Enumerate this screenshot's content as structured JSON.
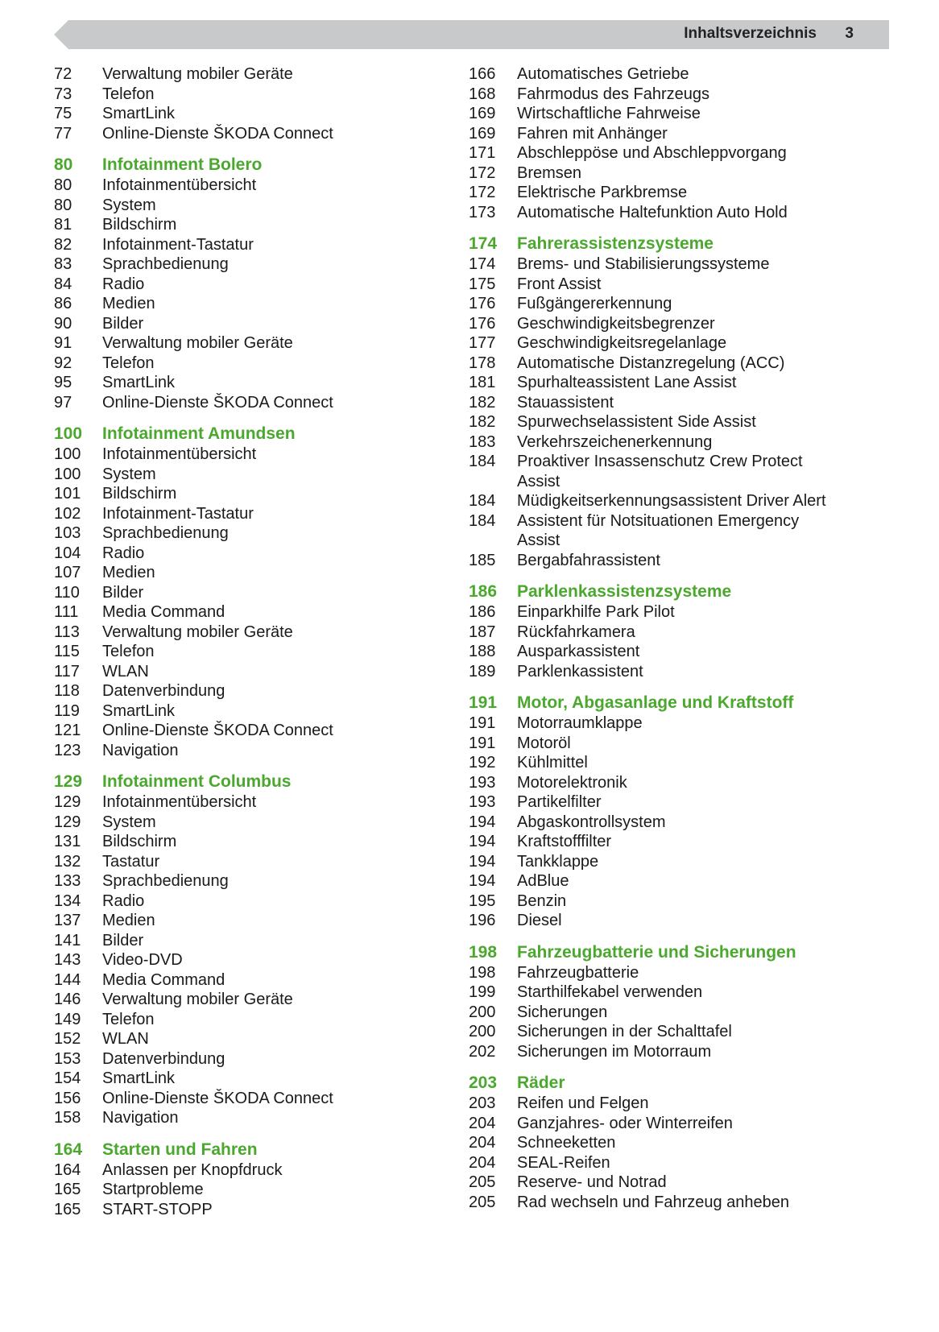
{
  "header": {
    "title": "Inhaltsverzeichnis",
    "page": "3",
    "bar_color": "#c8c9ca"
  },
  "accent_color": "#4ba82e",
  "columns": [
    [
      {
        "heading": null,
        "items": [
          [
            "72",
            "Verwaltung mobiler Geräte"
          ],
          [
            "73",
            "Telefon"
          ],
          [
            "75",
            "SmartLink"
          ],
          [
            "77",
            "Online-Dienste ŠKODA Connect"
          ]
        ]
      },
      {
        "heading": [
          "80",
          "Infotainment Bolero"
        ],
        "items": [
          [
            "80",
            "Infotainmentübersicht"
          ],
          [
            "80",
            "System"
          ],
          [
            "81",
            "Bildschirm"
          ],
          [
            "82",
            "Infotainment-Tastatur"
          ],
          [
            "83",
            "Sprachbedienung"
          ],
          [
            "84",
            "Radio"
          ],
          [
            "86",
            "Medien"
          ],
          [
            "90",
            "Bilder"
          ],
          [
            "91",
            "Verwaltung mobiler Geräte"
          ],
          [
            "92",
            "Telefon"
          ],
          [
            "95",
            "SmartLink"
          ],
          [
            "97",
            "Online-Dienste ŠKODA Connect"
          ]
        ]
      },
      {
        "heading": [
          "100",
          "Infotainment Amundsen"
        ],
        "items": [
          [
            "100",
            "Infotainmentübersicht"
          ],
          [
            "100",
            "System"
          ],
          [
            "101",
            "Bildschirm"
          ],
          [
            "102",
            "Infotainment-Tastatur"
          ],
          [
            "103",
            "Sprachbedienung"
          ],
          [
            "104",
            "Radio"
          ],
          [
            "107",
            "Medien"
          ],
          [
            "110",
            "Bilder"
          ],
          [
            "111",
            "Media Command"
          ],
          [
            "113",
            "Verwaltung mobiler Geräte"
          ],
          [
            "115",
            "Telefon"
          ],
          [
            "117",
            "WLAN"
          ],
          [
            "118",
            "Datenverbindung"
          ],
          [
            "119",
            "SmartLink"
          ],
          [
            "121",
            "Online-Dienste ŠKODA Connect"
          ],
          [
            "123",
            "Navigation"
          ]
        ]
      },
      {
        "heading": [
          "129",
          "Infotainment Columbus"
        ],
        "items": [
          [
            "129",
            "Infotainmentübersicht"
          ],
          [
            "129",
            "System"
          ],
          [
            "131",
            "Bildschirm"
          ],
          [
            "132",
            "Tastatur"
          ],
          [
            "133",
            "Sprachbedienung"
          ],
          [
            "134",
            "Radio"
          ],
          [
            "137",
            "Medien"
          ],
          [
            "141",
            "Bilder"
          ],
          [
            "143",
            "Video-DVD"
          ],
          [
            "144",
            "Media Command"
          ],
          [
            "146",
            "Verwaltung mobiler Geräte"
          ],
          [
            "149",
            "Telefon"
          ],
          [
            "152",
            "WLAN"
          ],
          [
            "153",
            "Datenverbindung"
          ],
          [
            "154",
            "SmartLink"
          ],
          [
            "156",
            "Online-Dienste ŠKODA Connect"
          ],
          [
            "158",
            "Navigation"
          ]
        ]
      },
      {
        "heading": [
          "164",
          "Starten und Fahren"
        ],
        "items": [
          [
            "164",
            "Anlassen per Knopfdruck"
          ],
          [
            "165",
            "Startprobleme"
          ],
          [
            "165",
            "START-STOPP"
          ]
        ]
      }
    ],
    [
      {
        "heading": null,
        "items": [
          [
            "166",
            "Automatisches Getriebe"
          ],
          [
            "168",
            "Fahrmodus des Fahrzeugs"
          ],
          [
            "169",
            "Wirtschaftliche Fahrweise"
          ],
          [
            "169",
            "Fahren mit Anhänger"
          ],
          [
            "171",
            "Abschleppöse und Abschleppvorgang"
          ],
          [
            "172",
            "Bremsen"
          ],
          [
            "172",
            "Elektrische Parkbremse"
          ],
          [
            "173",
            "Automatische Haltefunktion Auto Hold"
          ]
        ]
      },
      {
        "heading": [
          "174",
          "Fahrerassistenzsysteme"
        ],
        "items": [
          [
            "174",
            "Brems- und Stabilisierungssysteme"
          ],
          [
            "175",
            "Front Assist"
          ],
          [
            "176",
            "Fußgängererkennung"
          ],
          [
            "176",
            "Geschwindigkeitsbegrenzer"
          ],
          [
            "177",
            "Geschwindigkeitsregelanlage"
          ],
          [
            "178",
            "Automatische Distanzregelung (ACC)"
          ],
          [
            "181",
            "Spurhalteassistent Lane Assist"
          ],
          [
            "182",
            "Stauassistent"
          ],
          [
            "182",
            "Spurwechselassistent Side Assist"
          ],
          [
            "183",
            "Verkehrszeichenerkennung"
          ],
          [
            "184",
            "Proaktiver Insassenschutz Crew Protect Assist"
          ],
          [
            "184",
            "Müdigkeitserkennungsassistent Driver Alert"
          ],
          [
            "184",
            "Assistent für Notsituationen Emergency Assist"
          ],
          [
            "185",
            "Bergabfahrassistent"
          ]
        ]
      },
      {
        "heading": [
          "186",
          "Parklenkassistenzsysteme"
        ],
        "items": [
          [
            "186",
            "Einparkhilfe Park Pilot"
          ],
          [
            "187",
            "Rückfahrkamera"
          ],
          [
            "188",
            "Ausparkassistent"
          ],
          [
            "189",
            "Parklenkassistent"
          ]
        ]
      },
      {
        "heading": [
          "191",
          "Motor, Abgasanlage und Kraftstoff"
        ],
        "items": [
          [
            "191",
            "Motorraumklappe"
          ],
          [
            "191",
            "Motoröl"
          ],
          [
            "192",
            "Kühlmittel"
          ],
          [
            "193",
            "Motorelektronik"
          ],
          [
            "193",
            "Partikelfilter"
          ],
          [
            "194",
            "Abgaskontrollsystem"
          ],
          [
            "194",
            "Kraftstofffilter"
          ],
          [
            "194",
            "Tankklappe"
          ],
          [
            "194",
            "AdBlue"
          ],
          [
            "195",
            "Benzin"
          ],
          [
            "196",
            "Diesel"
          ]
        ]
      },
      {
        "heading": [
          "198",
          "Fahrzeugbatterie und Sicherungen"
        ],
        "items": [
          [
            "198",
            "Fahrzeugbatterie"
          ],
          [
            "199",
            "Starthilfekabel verwenden"
          ],
          [
            "200",
            "Sicherungen"
          ],
          [
            "200",
            "Sicherungen in der Schalttafel"
          ],
          [
            "202",
            "Sicherungen im Motorraum"
          ]
        ]
      },
      {
        "heading": [
          "203",
          "Räder"
        ],
        "items": [
          [
            "203",
            "Reifen und Felgen"
          ],
          [
            "204",
            "Ganzjahres- oder Winterreifen"
          ],
          [
            "204",
            "Schneeketten"
          ],
          [
            "204",
            "SEAL-Reifen"
          ],
          [
            "205",
            "Reserve- und Notrad"
          ],
          [
            "205",
            "Rad wechseln und Fahrzeug anheben"
          ]
        ]
      }
    ]
  ]
}
